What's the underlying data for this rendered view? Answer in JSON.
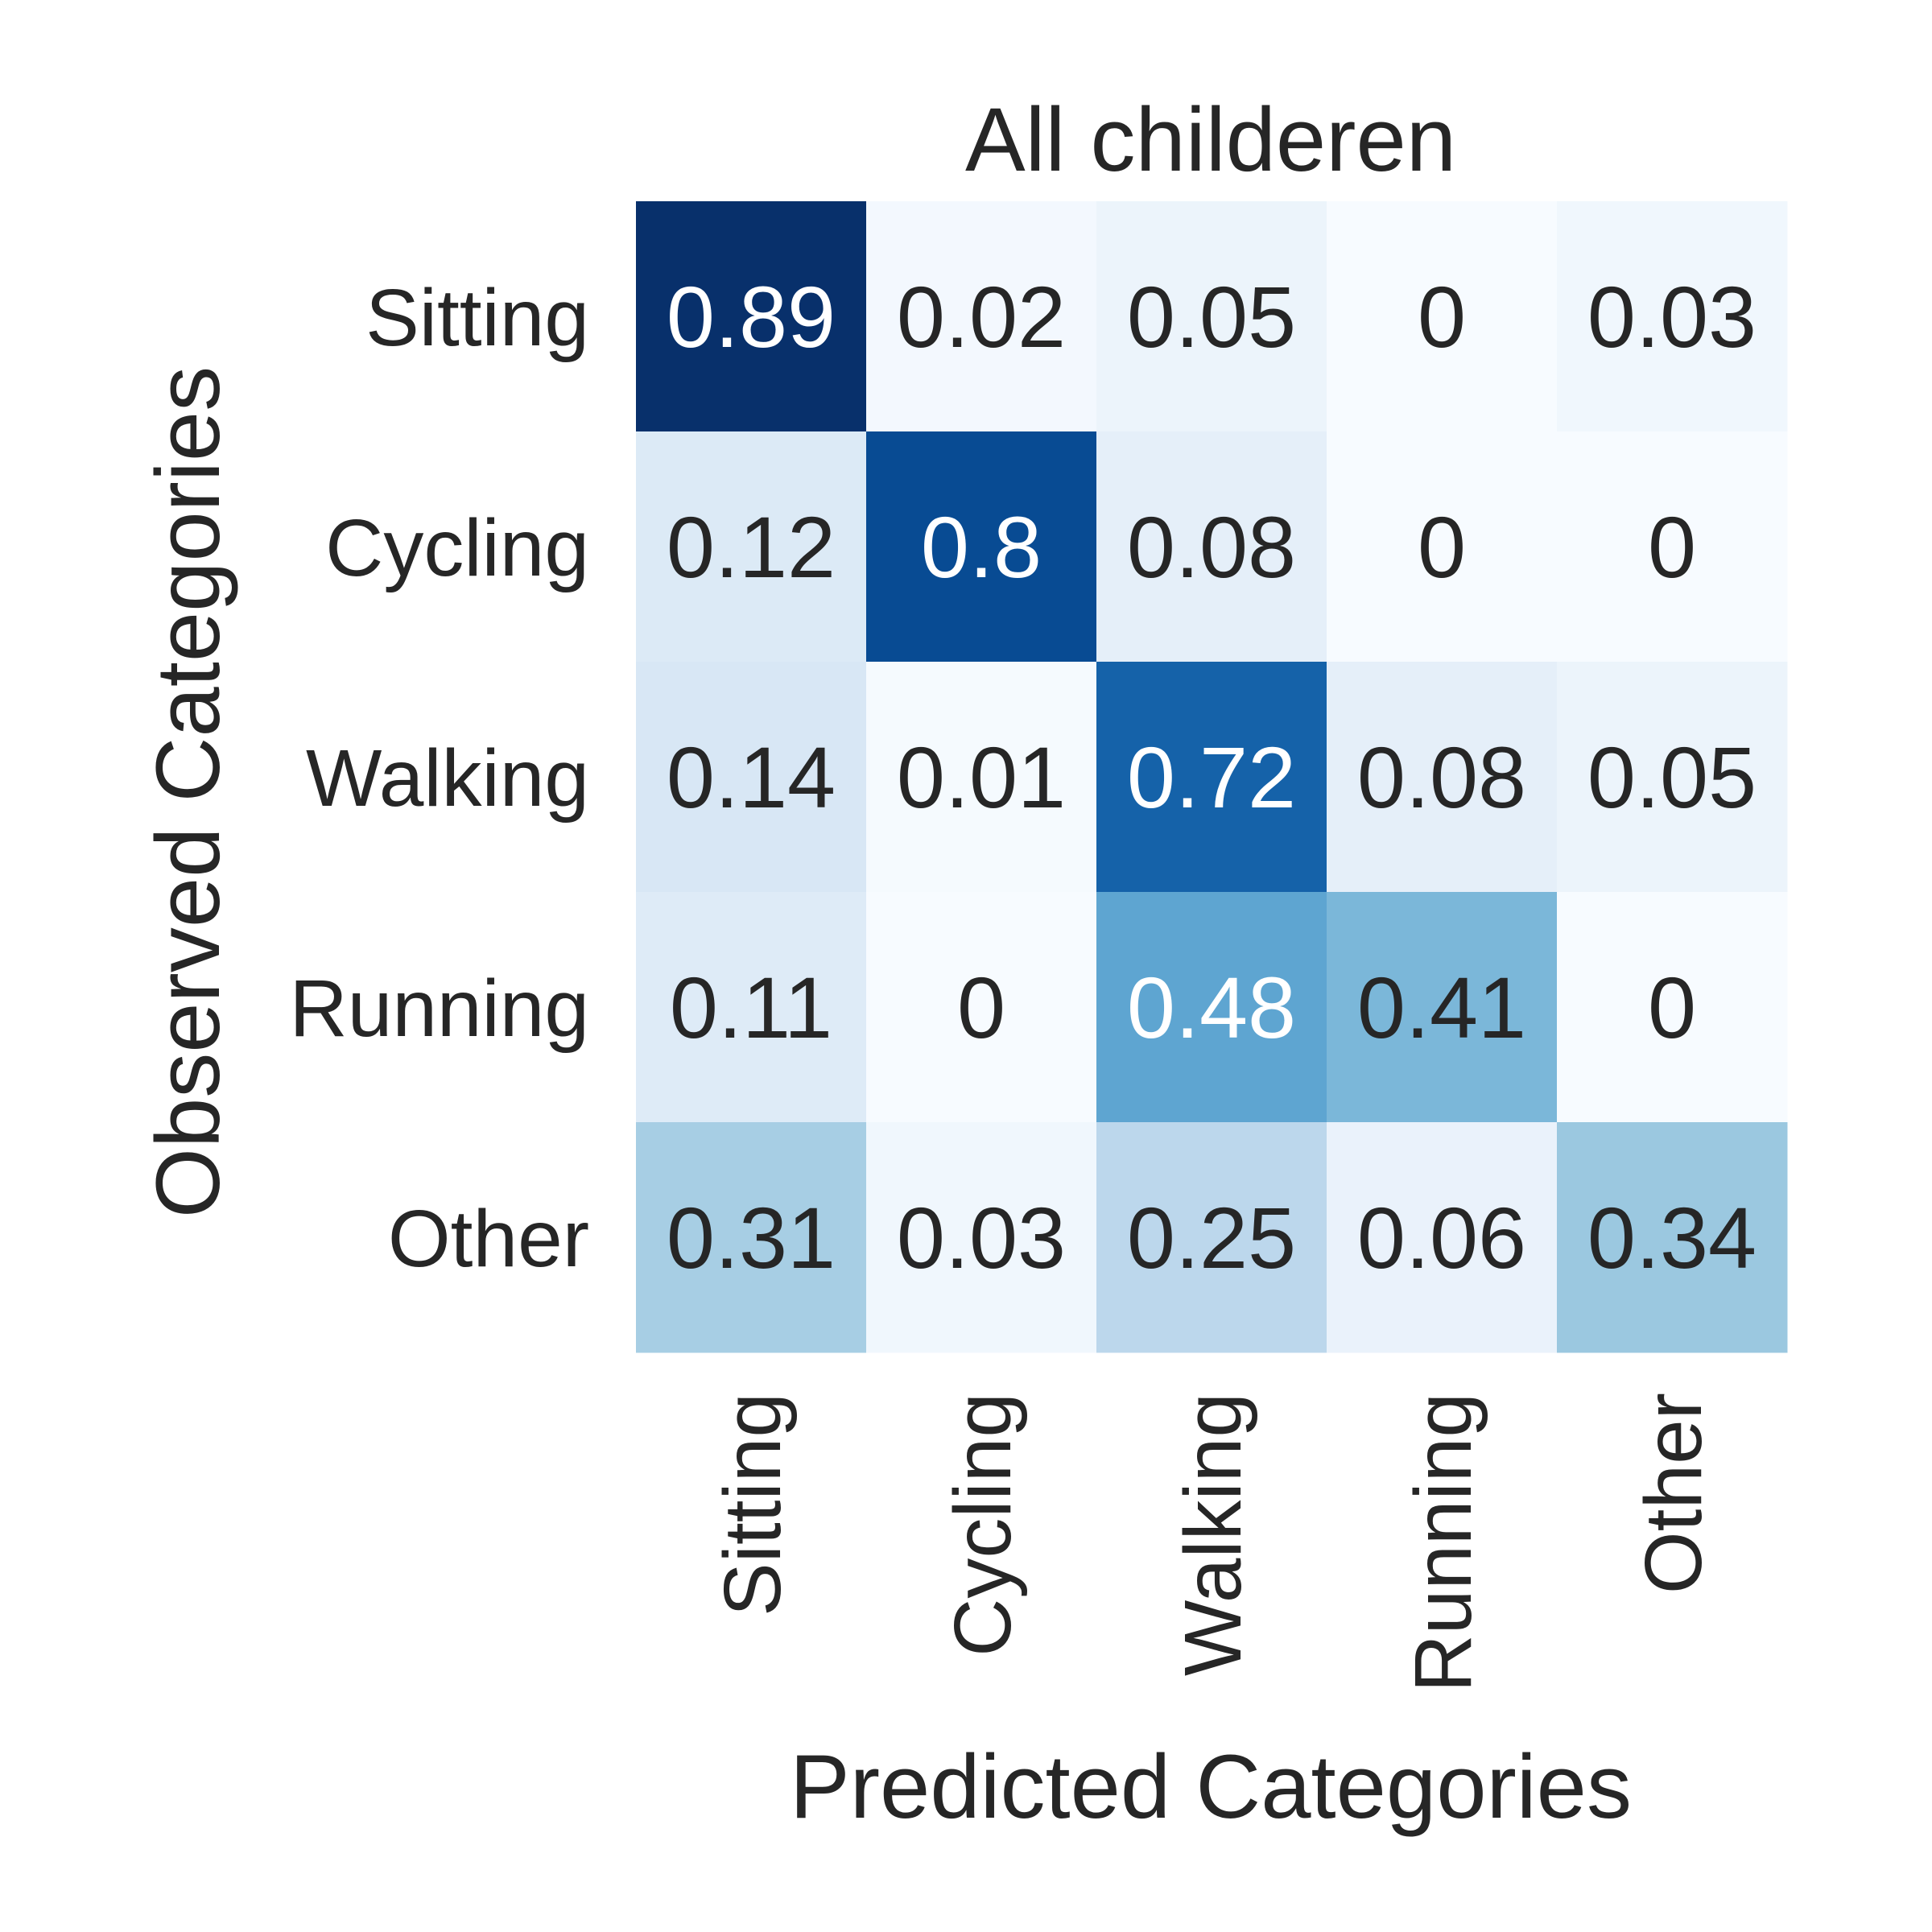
{
  "chart_data": {
    "type": "heatmap",
    "title": "All childeren",
    "xlabel": "Predicted Categories",
    "ylabel": "Observed Categories",
    "x_categories": [
      "Sitting",
      "Cycling",
      "Walking",
      "Running",
      "Other"
    ],
    "y_categories": [
      "Sitting",
      "Cycling",
      "Walking",
      "Running",
      "Other"
    ],
    "values": [
      [
        0.89,
        0.02,
        0.05,
        0,
        0.03
      ],
      [
        0.12,
        0.8,
        0.08,
        0,
        0
      ],
      [
        0.14,
        0.01,
        0.72,
        0.08,
        0.05
      ],
      [
        0.11,
        0,
        0.48,
        0.41,
        0
      ],
      [
        0.31,
        0.03,
        0.25,
        0.06,
        0.34
      ]
    ],
    "value_labels": [
      [
        "0.89",
        "0.02",
        "0.05",
        "0",
        "0.03"
      ],
      [
        "0.12",
        "0.8",
        "0.08",
        "0",
        "0"
      ],
      [
        "0.14",
        "0.01",
        "0.72",
        "0.08",
        "0.05"
      ],
      [
        "0.11",
        "0",
        "0.48",
        "0.41",
        "0"
      ],
      [
        "0.31",
        "0.03",
        "0.25",
        "0.06",
        "0.34"
      ]
    ],
    "value_range": [
      0,
      0.89
    ],
    "colormap": "Blues",
    "colorbar": false,
    "grid": false
  }
}
